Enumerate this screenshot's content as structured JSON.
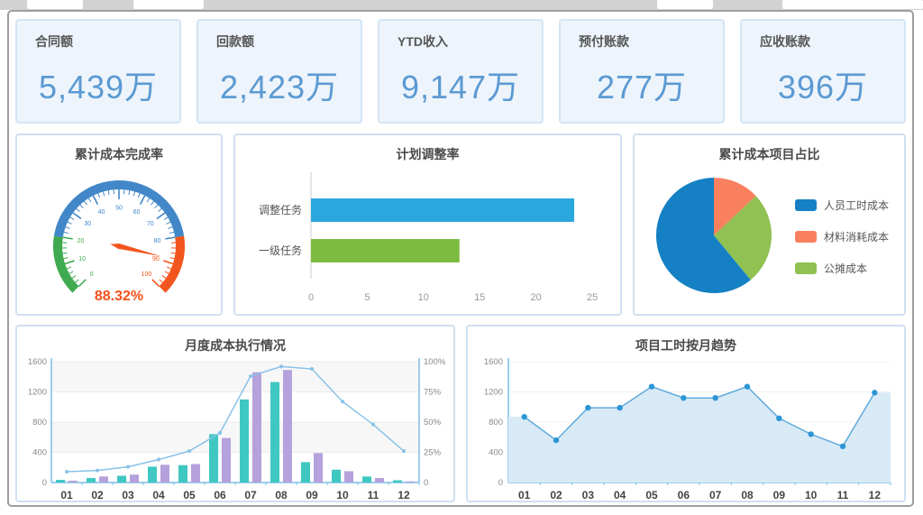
{
  "kpi_cards": [
    {
      "label": "合同额",
      "value": "5,439万"
    },
    {
      "label": "回款额",
      "value": "2,423万"
    },
    {
      "label": "YTD收入",
      "value": "9,147万"
    },
    {
      "label": "预付账款",
      "value": "277万"
    },
    {
      "label": "应收账款",
      "value": "396万"
    }
  ],
  "colors": {
    "kpi_value": "#5b9ad3",
    "kpi_card_bg": "#edf4fb",
    "kpi_card_border": "#d3e5f5",
    "panel_border": "#cfe0f1"
  },
  "chart_data": [
    {
      "id": "gauge",
      "type": "gauge",
      "title": "累计成本完成率",
      "min": 0,
      "max": 100,
      "value": 88.32,
      "value_label": "88.32%",
      "tick_labels": [
        "0",
        "10",
        "20",
        "30",
        "40",
        "50",
        "60",
        "70",
        "80",
        "90",
        "100"
      ],
      "segments": [
        {
          "from": 0,
          "to": 20,
          "color": "#3faa4f"
        },
        {
          "from": 20,
          "to": 80,
          "color": "#4287c7"
        },
        {
          "from": 80,
          "to": 100,
          "color": "#f2551d"
        }
      ],
      "needle_color": "#f2551d",
      "value_color": "#f4511c"
    },
    {
      "id": "hbar",
      "type": "bar",
      "orientation": "horizontal",
      "title": "计划调整率",
      "categories": [
        "调整任务",
        "一级任务"
      ],
      "values": [
        23.4,
        13.2
      ],
      "bar_colors": [
        "#2aa7de",
        "#7dbb40"
      ],
      "xlim": [
        0,
        25
      ],
      "x_ticks": [
        "0",
        "5",
        "10",
        "15",
        "20",
        "25"
      ],
      "x_tick_values": [
        0,
        5,
        10,
        15,
        20,
        25
      ]
    },
    {
      "id": "pie",
      "type": "pie",
      "title": "累计成本项目占比",
      "slices": [
        {
          "label": "人员工时成本",
          "value": 61,
          "color": "#1580c3"
        },
        {
          "label": "材料消耗成本",
          "value": 13,
          "color": "#f9805f"
        },
        {
          "label": "公摊成本",
          "value": 26,
          "color": "#90c152"
        }
      ],
      "draw_order": [
        1,
        2,
        0
      ],
      "legend_position": "right"
    },
    {
      "id": "combo",
      "type": "bar",
      "title": "月度成本执行情况",
      "categories": [
        "01",
        "02",
        "03",
        "04",
        "05",
        "06",
        "07",
        "08",
        "09",
        "10",
        "11",
        "12"
      ],
      "series": [
        {
          "name": "bar-series-1",
          "kind": "bar",
          "axis": "left",
          "color": "#3fc7c2",
          "values": [
            35,
            60,
            90,
            210,
            230,
            640,
            1100,
            1330,
            270,
            170,
            80,
            30
          ]
        },
        {
          "name": "bar-series-2",
          "kind": "bar",
          "axis": "left",
          "color": "#b5a1db",
          "values": [
            25,
            80,
            105,
            235,
            245,
            590,
            1460,
            1490,
            390,
            150,
            60,
            15
          ]
        },
        {
          "name": "line-series",
          "kind": "line",
          "axis": "right",
          "color": "#88c1e8",
          "values": [
            9,
            10,
            13,
            19,
            26,
            41,
            88,
            96,
            94,
            67,
            48,
            26
          ]
        }
      ],
      "ylim_left": [
        0,
        1600
      ],
      "left_ticks": [
        "0",
        "400",
        "800",
        "1200",
        "1600"
      ],
      "left_tick_values": [
        0,
        400,
        800,
        1200,
        1600
      ],
      "ylim_right": [
        0,
        100
      ],
      "right_ticks": [
        "0",
        "25%",
        "50%",
        "75%",
        "100%"
      ],
      "right_tick_values": [
        0,
        25,
        50,
        75,
        100
      ],
      "axis_color": "#7cbde6",
      "grid": true
    },
    {
      "id": "area",
      "type": "area",
      "title": "项目工时按月趋势",
      "categories": [
        "01",
        "02",
        "03",
        "04",
        "05",
        "06",
        "07",
        "08",
        "09",
        "10",
        "11",
        "12"
      ],
      "values": [
        870,
        560,
        990,
        990,
        1270,
        1120,
        1120,
        1270,
        850,
        640,
        480,
        1190
      ],
      "ylim": [
        0,
        1600
      ],
      "y_ticks": [
        "0",
        "400",
        "800",
        "1200",
        "1600"
      ],
      "y_tick_values": [
        0,
        400,
        800,
        1200,
        1600
      ],
      "line_color": "#60abdb",
      "fill_color": "#d8eaf6",
      "marker_color": "#2d96d6",
      "axis_color": "#7cbde6",
      "grid": true
    }
  ]
}
